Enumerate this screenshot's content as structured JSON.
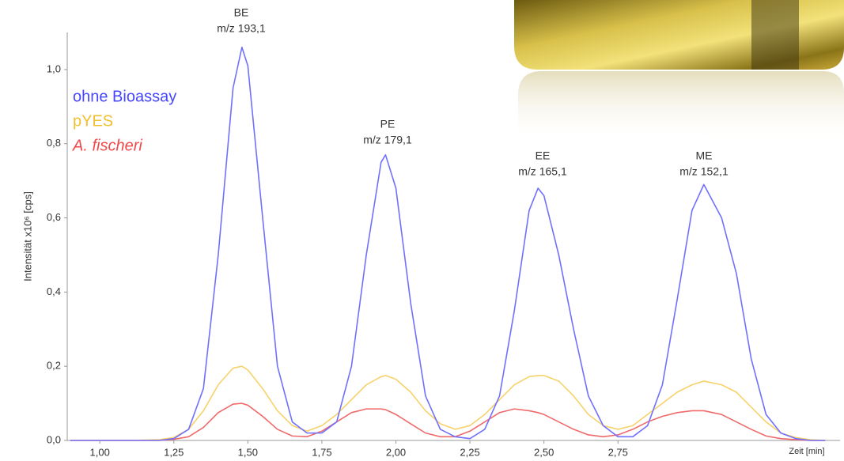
{
  "chart_data": {
    "type": "line",
    "y_label": "Intensität x10⁶ [cps]",
    "x_label": "Zeit [min]",
    "legend": "upper left",
    "xlim": [
      0.89,
      3.5
    ],
    "ylim": [
      0,
      1.1
    ],
    "xticks": [
      {
        "value": 1.0,
        "label": "1,00"
      },
      {
        "value": 1.25,
        "label": "1,25"
      },
      {
        "value": 1.5,
        "label": "1,50"
      },
      {
        "value": 1.75,
        "label": "1,75"
      },
      {
        "value": 2.0,
        "label": "2,00"
      },
      {
        "value": 2.25,
        "label": "2,25"
      },
      {
        "value": 2.5,
        "label": "2,50"
      },
      {
        "value": 2.75,
        "label": "2,75"
      }
    ],
    "yticks": [
      {
        "value": 0,
        "label": "0,0"
      },
      {
        "value": 0.2,
        "label": "0,2"
      },
      {
        "value": 0.4,
        "label": "0,4"
      },
      {
        "value": 0.6,
        "label": "0,6"
      },
      {
        "value": 0.8,
        "label": "0,8"
      },
      {
        "value": 1.0,
        "label": "1,0"
      }
    ],
    "x": [
      0.9,
      1.0,
      1.1,
      1.2,
      1.25,
      1.3,
      1.35,
      1.4,
      1.45,
      1.48,
      1.5,
      1.55,
      1.6,
      1.65,
      1.7,
      1.75,
      1.8,
      1.85,
      1.9,
      1.95,
      1.965,
      2.0,
      2.05,
      2.1,
      2.15,
      2.2,
      2.25,
      2.3,
      2.35,
      2.4,
      2.45,
      2.48,
      2.5,
      2.55,
      2.6,
      2.65,
      2.7,
      2.75,
      2.8,
      2.85,
      2.9,
      2.95,
      3.0,
      3.04,
      3.1,
      3.15,
      3.2,
      3.25,
      3.3,
      3.35,
      3.4,
      3.45
    ],
    "series": [
      {
        "name": "ohne Bioassay",
        "color": "#7070ff",
        "label_color": "#4646ff",
        "italic": false,
        "values": [
          0,
          0,
          0,
          0,
          0.005,
          0.03,
          0.14,
          0.5,
          0.95,
          1.06,
          1.01,
          0.6,
          0.2,
          0.05,
          0.02,
          0.02,
          0.05,
          0.2,
          0.5,
          0.75,
          0.77,
          0.68,
          0.37,
          0.12,
          0.03,
          0.01,
          0.005,
          0.03,
          0.12,
          0.35,
          0.62,
          0.68,
          0.66,
          0.5,
          0.3,
          0.12,
          0.04,
          0.01,
          0.01,
          0.04,
          0.15,
          0.38,
          0.62,
          0.69,
          0.6,
          0.45,
          0.22,
          0.07,
          0.02,
          0.005,
          0,
          0
        ]
      },
      {
        "name": "pYES",
        "color": "#f7d26a",
        "label_color": "#f0c030",
        "italic": false,
        "values": [
          0,
          0,
          0,
          0.002,
          0.008,
          0.03,
          0.08,
          0.15,
          0.195,
          0.2,
          0.19,
          0.14,
          0.08,
          0.04,
          0.025,
          0.04,
          0.07,
          0.11,
          0.15,
          0.172,
          0.175,
          0.165,
          0.13,
          0.08,
          0.045,
          0.03,
          0.04,
          0.07,
          0.11,
          0.15,
          0.172,
          0.175,
          0.175,
          0.16,
          0.12,
          0.07,
          0.04,
          0.03,
          0.04,
          0.07,
          0.1,
          0.13,
          0.15,
          0.16,
          0.15,
          0.13,
          0.09,
          0.05,
          0.02,
          0.008,
          0.002,
          0
        ]
      },
      {
        "name": "A. fischeri",
        "color": "#f06a6a",
        "label_color": "#f04848",
        "italic": true,
        "values": [
          0,
          0,
          0,
          0,
          0.003,
          0.01,
          0.035,
          0.075,
          0.098,
          0.1,
          0.095,
          0.065,
          0.03,
          0.012,
          0.01,
          0.025,
          0.05,
          0.075,
          0.085,
          0.085,
          0.083,
          0.07,
          0.045,
          0.02,
          0.01,
          0.01,
          0.025,
          0.05,
          0.075,
          0.085,
          0.08,
          0.075,
          0.07,
          0.05,
          0.03,
          0.015,
          0.01,
          0.015,
          0.03,
          0.05,
          0.065,
          0.075,
          0.08,
          0.08,
          0.07,
          0.05,
          0.03,
          0.012,
          0.005,
          0.002,
          0,
          0
        ]
      }
    ],
    "annotations": [
      {
        "name": "BE",
        "mass": "m/z 193,1"
      },
      {
        "name": "PE",
        "mass": "m/z 179,1"
      },
      {
        "name": "EE",
        "mass": "m/z 165,1"
      },
      {
        "name": "ME",
        "mass": "m/z 152,1"
      }
    ]
  }
}
